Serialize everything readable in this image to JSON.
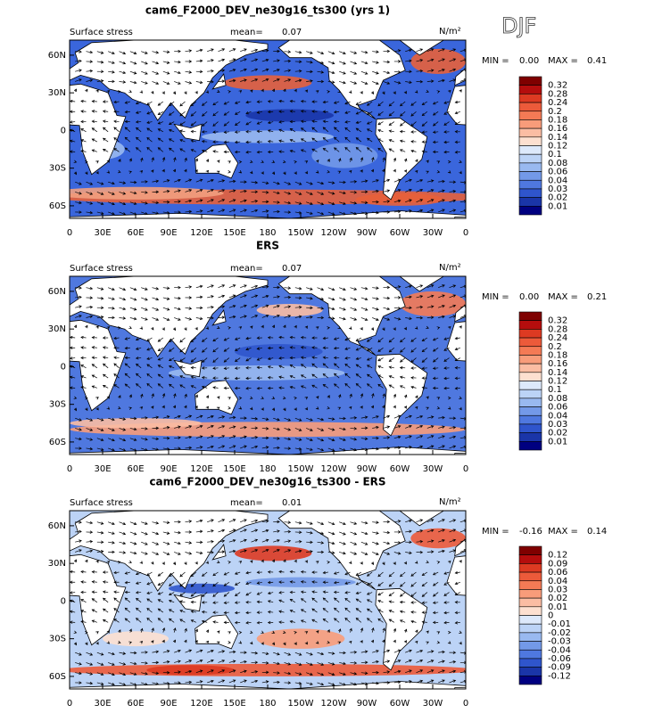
{
  "chart_data": [
    {
      "type": "contour-map",
      "title": "cam6_F2000_DEV_ne30g16_ts300 (yrs 1)",
      "annotation": "DJF",
      "variable": "Surface stress",
      "mean_label": "mean=",
      "mean": 0.07,
      "units": "N/m²",
      "min_label": "MIN =",
      "min": {
        "value": 0,
        "label": "0.00"
      },
      "max_label": "MAX =",
      "max": 0.41,
      "xlim": [
        0,
        360
      ],
      "ylim": [
        -70,
        72
      ],
      "xticks": [
        0,
        {
          "value": 30,
          "label": "30E"
        },
        {
          "value": 60,
          "label": "60E"
        },
        {
          "value": 90,
          "label": "90E"
        },
        {
          "value": 120,
          "label": "120E"
        },
        {
          "value": 150,
          "label": "150E"
        },
        180,
        {
          "value": 210,
          "label": "150W"
        },
        {
          "value": 240,
          "label": "120W"
        },
        {
          "value": 270,
          "label": "90W"
        },
        {
          "value": 300,
          "label": "60W"
        },
        {
          "value": 330,
          "label": "30W"
        },
        {
          "value": 360,
          "label": "0"
        }
      ],
      "yticks": [
        {
          "value": 60,
          "label": "60N"
        },
        {
          "value": 30,
          "label": "30N"
        },
        0,
        {
          "value": -30,
          "label": "30S"
        },
        {
          "value": -60,
          "label": "60S"
        }
      ],
      "levels": [
        0.32,
        0.28,
        0.24,
        0.2,
        0.18,
        0.16,
        0.14,
        0.12,
        0.1,
        0.08,
        0.06,
        0.04,
        0.03,
        0.02,
        0.01
      ],
      "colors": [
        "#7f0000",
        "#b50d0d",
        "#dd3a22",
        "#ec5a3a",
        "#f47a55",
        "#f89c7a",
        "#fbbda3",
        "#fde0d0",
        "#dde9fb",
        "#bcd3f6",
        "#99b9f0",
        "#7399e8",
        "#4f78df",
        "#2f55cc",
        "#1a35a8",
        "#000080"
      ]
    },
    {
      "type": "contour-map",
      "title": "ERS",
      "variable": "Surface stress",
      "mean_label": "mean=",
      "mean": 0.07,
      "units": "N/m²",
      "min_label": "MIN =",
      "min": {
        "value": 0,
        "label": "0.00"
      },
      "max_label": "MAX =",
      "max": 0.21,
      "xlim": [
        0,
        360
      ],
      "ylim": [
        -70,
        72
      ],
      "xticks": [
        0,
        {
          "value": 30,
          "label": "30E"
        },
        {
          "value": 60,
          "label": "60E"
        },
        {
          "value": 90,
          "label": "90E"
        },
        {
          "value": 120,
          "label": "120E"
        },
        {
          "value": 150,
          "label": "150E"
        },
        180,
        {
          "value": 210,
          "label": "150W"
        },
        {
          "value": 240,
          "label": "120W"
        },
        {
          "value": 270,
          "label": "90W"
        },
        {
          "value": 300,
          "label": "60W"
        },
        {
          "value": 330,
          "label": "30W"
        },
        {
          "value": 360,
          "label": "0"
        }
      ],
      "yticks": [
        {
          "value": 60,
          "label": "60N"
        },
        {
          "value": 30,
          "label": "30N"
        },
        0,
        {
          "value": -30,
          "label": "30S"
        },
        {
          "value": -60,
          "label": "60S"
        }
      ],
      "levels": [
        0.32,
        0.28,
        0.24,
        0.2,
        0.18,
        0.16,
        0.14,
        0.12,
        0.1,
        0.08,
        0.06,
        0.04,
        0.03,
        0.02,
        0.01
      ],
      "colors": [
        "#7f0000",
        "#b50d0d",
        "#dd3a22",
        "#ec5a3a",
        "#f47a55",
        "#f89c7a",
        "#fbbda3",
        "#fde0d0",
        "#dde9fb",
        "#bcd3f6",
        "#99b9f0",
        "#7399e8",
        "#4f78df",
        "#2f55cc",
        "#1a35a8",
        "#000080"
      ]
    },
    {
      "type": "contour-map",
      "title": "cam6_F2000_DEV_ne30g16_ts300 - ERS",
      "variable": "Surface stress",
      "mean_label": "mean=",
      "mean": 0.01,
      "units": "N/m²",
      "min_label": "MIN =",
      "min": -0.16,
      "max_label": "MAX =",
      "max": 0.14,
      "xlim": [
        0,
        360
      ],
      "ylim": [
        -70,
        72
      ],
      "xticks": [
        0,
        {
          "value": 30,
          "label": "30E"
        },
        {
          "value": 60,
          "label": "60E"
        },
        {
          "value": 90,
          "label": "90E"
        },
        {
          "value": 120,
          "label": "120E"
        },
        {
          "value": 150,
          "label": "150E"
        },
        180,
        {
          "value": 210,
          "label": "150W"
        },
        {
          "value": 240,
          "label": "120W"
        },
        {
          "value": 270,
          "label": "90W"
        },
        {
          "value": 300,
          "label": "60W"
        },
        {
          "value": 330,
          "label": "30W"
        },
        {
          "value": 360,
          "label": "0"
        }
      ],
      "yticks": [
        {
          "value": 60,
          "label": "60N"
        },
        {
          "value": 30,
          "label": "30N"
        },
        0,
        {
          "value": -30,
          "label": "30S"
        },
        {
          "value": -60,
          "label": "60S"
        }
      ],
      "levels": [
        0.12,
        0.09,
        0.06,
        0.04,
        0.03,
        0.02,
        0.01,
        0,
        -0.01,
        -0.02,
        -0.03,
        -0.04,
        -0.06,
        -0.09,
        -0.12
      ],
      "colors": [
        "#7f0000",
        "#b50d0d",
        "#dd3a22",
        "#ec5a3a",
        "#f47a55",
        "#f89c7a",
        "#fbbda3",
        "#fde0d0",
        "#dde9fb",
        "#bcd3f6",
        "#99b9f0",
        "#7399e8",
        "#4f78df",
        "#2f55cc",
        "#1a35a8",
        "#000080"
      ]
    }
  ]
}
